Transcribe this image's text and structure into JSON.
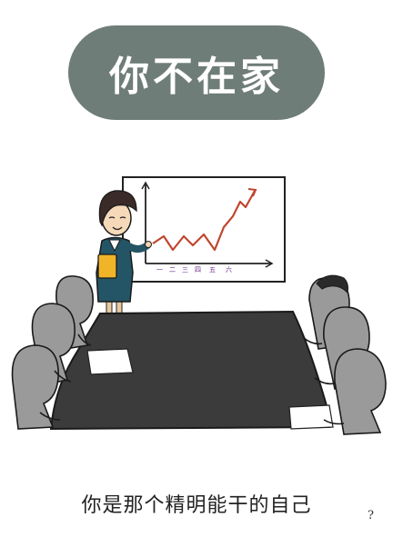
{
  "title": "你不在家",
  "caption": "你是那个精明能干的自己",
  "signature": "?",
  "chart": {
    "tick_labels": [
      "一",
      "二",
      "三",
      "四",
      "五",
      "六"
    ]
  },
  "colors": {
    "pill": "#6f7d78",
    "table": "#3b3b3b",
    "audience": "#9a9a9a",
    "presenter_shirt": "#245566",
    "hair": "#3a2a28",
    "chart_line": "#c0462e",
    "folder": "#f0b429"
  }
}
